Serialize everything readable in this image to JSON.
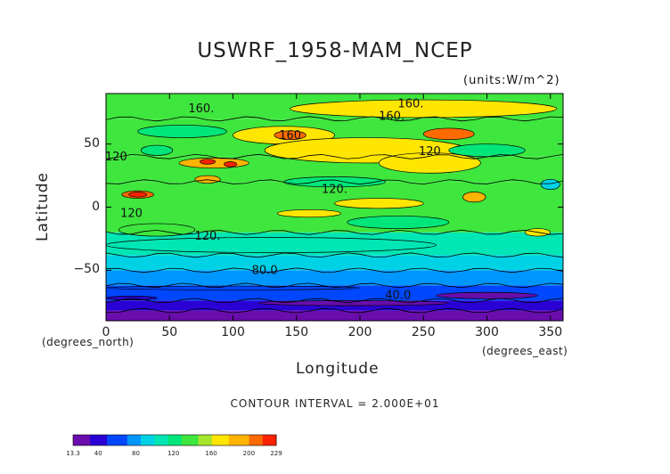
{
  "chart_data": {
    "type": "heatmap",
    "title": "USWRF_1958-MAM_NCEP",
    "units": "(units:W/m^2)",
    "xlabel": "Longitude",
    "ylabel": "Latitude",
    "xunits": "(degrees_east)",
    "yunits": "(degrees_north)",
    "xlim": [
      0,
      360
    ],
    "ylim": [
      -90,
      90
    ],
    "xticks": [
      0,
      50,
      100,
      150,
      200,
      250,
      300,
      350
    ],
    "yticks": [
      -50,
      0,
      50
    ],
    "contour_interval": "CONTOUR INTERVAL = 2.000E+01",
    "contour_labels": [
      {
        "text": "160.",
        "lon": 75,
        "lat": 78
      },
      {
        "text": "160.",
        "lon": 240,
        "lat": 82
      },
      {
        "text": "160.",
        "lon": 225,
        "lat": 72
      },
      {
        "text": "160",
        "lon": 145,
        "lat": 57
      },
      {
        "text": "120",
        "lon": 8,
        "lat": 40
      },
      {
        "text": "120",
        "lon": 255,
        "lat": 44
      },
      {
        "text": "120.",
        "lon": 180,
        "lat": 14
      },
      {
        "text": "120.",
        "lon": 80,
        "lat": -23
      },
      {
        "text": "120",
        "lon": 20,
        "lat": -5
      },
      {
        "text": "80.0",
        "lon": 125,
        "lat": -50
      },
      {
        "text": "40.0",
        "lon": 230,
        "lat": -70
      }
    ],
    "bands": [
      {
        "lat": [
          -90,
          -82
        ],
        "value": 20
      },
      {
        "lat": [
          -82,
          -74
        ],
        "value": 40
      },
      {
        "lat": [
          -74,
          -62
        ],
        "value": 55
      },
      {
        "lat": [
          -62,
          -50
        ],
        "value": 75
      },
      {
        "lat": [
          -50,
          -38
        ],
        "value": 90
      },
      {
        "lat": [
          -38,
          -20
        ],
        "value": 110
      },
      {
        "lat": [
          -20,
          20
        ],
        "value": 130
      },
      {
        "lat": [
          20,
          40
        ],
        "value": 130
      },
      {
        "lat": [
          40,
          70
        ],
        "value": 140
      },
      {
        "lat": [
          70,
          90
        ],
        "value": 130
      }
    ],
    "colorbar": {
      "min": 13.3,
      "max": 229,
      "ticks": [
        "13.3",
        "40",
        "80",
        "120",
        "160",
        "200",
        "229"
      ]
    }
  }
}
